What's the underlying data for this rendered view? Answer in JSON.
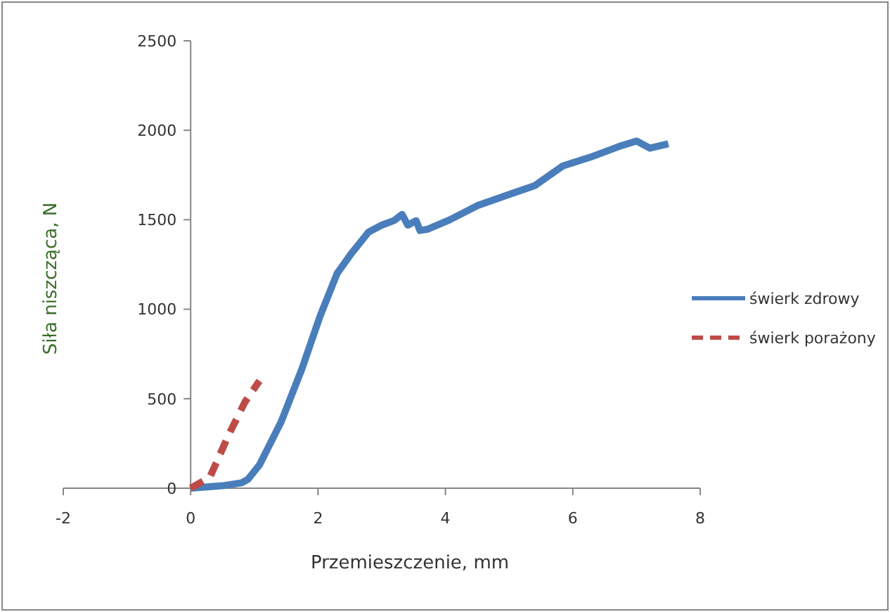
{
  "chart_data": {
    "type": "line",
    "xlabel": "Przemieszczenie, mm",
    "ylabel": "Siła niszcząca, N",
    "xlim": [
      -2,
      8
    ],
    "xticks": [
      -2,
      0,
      2,
      4,
      6,
      8
    ],
    "ylim": [
      0,
      2500
    ],
    "yticks": [
      0,
      500,
      1000,
      1500,
      2000,
      2500
    ],
    "grid": false,
    "legend": "right",
    "marker": "none",
    "series": [
      {
        "name": "świerk zdrowy",
        "color": "#4a7ebb",
        "line_style": "solid",
        "x": [
          0,
          0.53,
          0.8,
          0.9,
          1.08,
          1.42,
          1.75,
          2.03,
          2.3,
          2.52,
          2.79,
          3.0,
          3.19,
          3.32,
          3.41,
          3.54,
          3.6,
          3.72,
          4.07,
          4.51,
          5.07,
          5.4,
          5.84,
          6.28,
          6.73,
          7.0,
          7.21,
          7.5
        ],
        "values": [
          0,
          15,
          30,
          50,
          130,
          370,
          670,
          960,
          1200,
          1310,
          1430,
          1470,
          1495,
          1530,
          1470,
          1495,
          1440,
          1447,
          1500,
          1580,
          1650,
          1690,
          1800,
          1850,
          1910,
          1940,
          1900,
          1925
        ]
      },
      {
        "name": "świerk porażony",
        "color": "#be4b48",
        "line_style": "dashed",
        "x": [
          0,
          0.3,
          0.6,
          0.85,
          1.08
        ],
        "values": [
          0,
          60,
          300,
          480,
          600
        ]
      }
    ]
  }
}
